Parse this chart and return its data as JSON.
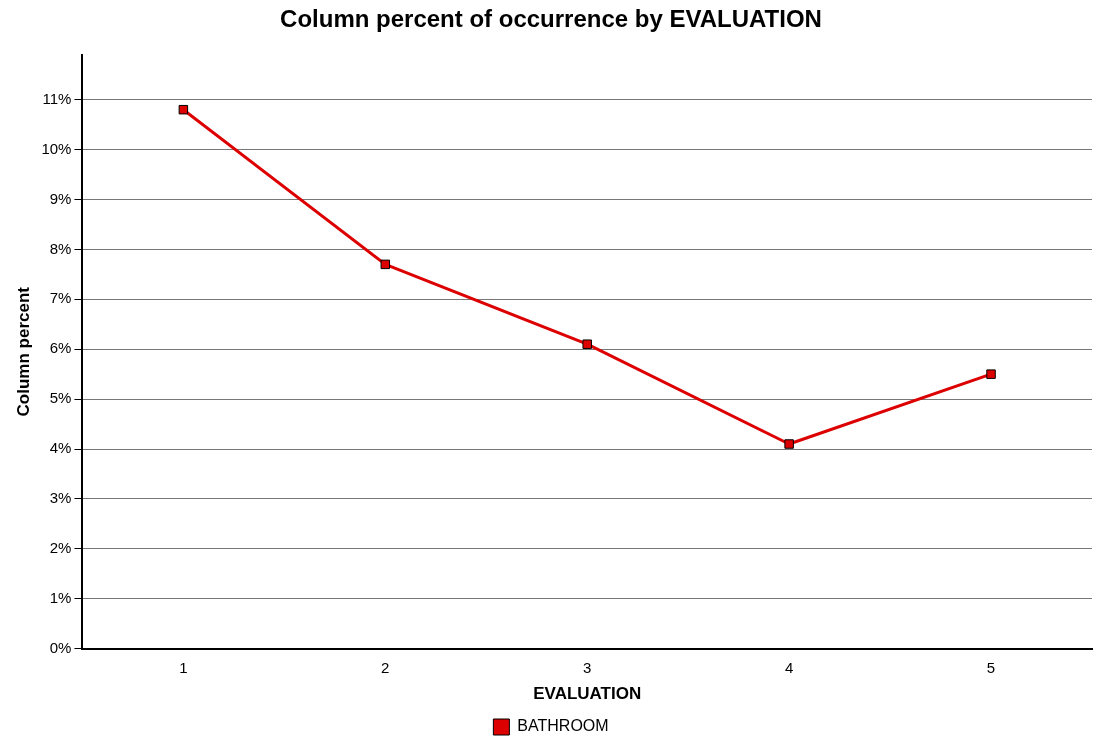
{
  "chart_data": {
    "type": "line",
    "title": "Column percent of occurrence by EVALUATION",
    "xlabel": "EVALUATION",
    "ylabel": "Column percent",
    "categories": [
      "1",
      "2",
      "3",
      "4",
      "5"
    ],
    "series": [
      {
        "name": "BATHROOM",
        "color": "#dd0000",
        "values": [
          10.8,
          7.7,
          6.1,
          4.1,
          5.5
        ]
      }
    ],
    "ylim": [
      0,
      11.9
    ],
    "yticks": [
      {
        "value": 0,
        "label": "0%"
      },
      {
        "value": 1,
        "label": "1%"
      },
      {
        "value": 2,
        "label": "2%"
      },
      {
        "value": 3,
        "label": "3%"
      },
      {
        "value": 4,
        "label": "4%"
      },
      {
        "value": 5,
        "label": "5%"
      },
      {
        "value": 6,
        "label": "6%"
      },
      {
        "value": 7,
        "label": "7%"
      },
      {
        "value": 8,
        "label": "8%"
      },
      {
        "value": 9,
        "label": "9%"
      },
      {
        "value": 10,
        "label": "10%"
      },
      {
        "value": 11,
        "label": "11%"
      }
    ],
    "grid": "y",
    "legend": "bottom",
    "marker": "square",
    "line_style": "solid"
  }
}
